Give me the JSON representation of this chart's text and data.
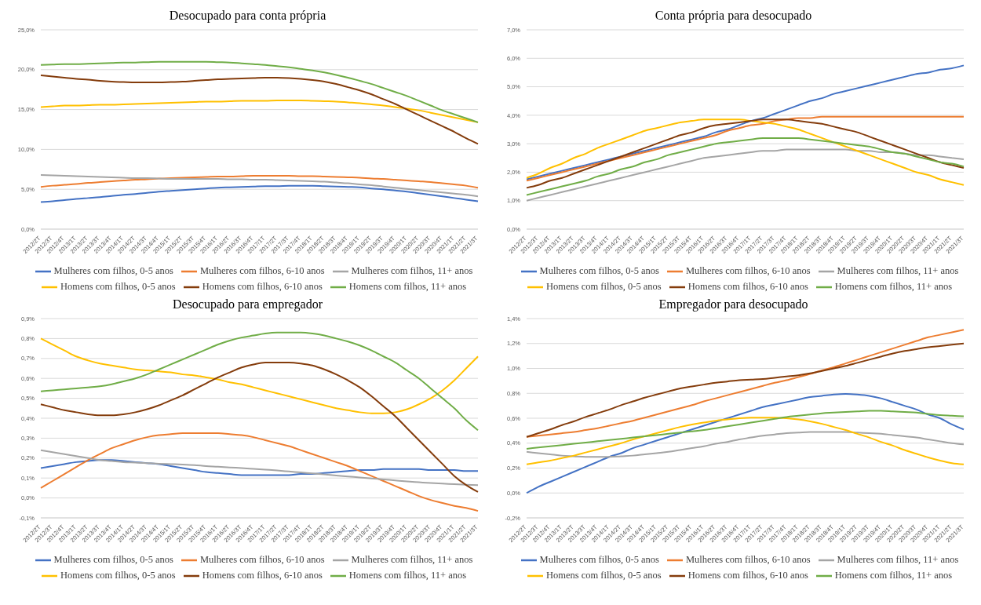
{
  "chart_data": [
    {
      "type": "line",
      "title": "Desocupado para conta própria",
      "categories": [
        "2012/2T",
        "2012/3T",
        "2012/4T",
        "2013/1T",
        "2013/2T",
        "2013/3T",
        "2013/4T",
        "2014/1T",
        "2014/2T",
        "2014/3T",
        "2014/4T",
        "2015/1T",
        "2015/2T",
        "2015/3T",
        "2015/4T",
        "2016/1T",
        "2016/2T",
        "2016/3T",
        "2016/4T",
        "2017/1T",
        "2017/2T",
        "2017/3T",
        "2017/4T",
        "2018/1T",
        "2018/2T",
        "2018/3T",
        "2018/4T",
        "2019/1T",
        "2019/2T",
        "2019/3T",
        "2019/4T",
        "2020/1T",
        "2020/2T",
        "2020/3T",
        "2020/4T",
        "2021/1T",
        "2021/2T",
        "2021/3T"
      ],
      "ylim": [
        0,
        25
      ],
      "yticks": [
        {
          "value": 0,
          "label": "0,0%"
        },
        {
          "value": 5,
          "label": "5,0%"
        },
        {
          "value": 10,
          "label": "10,0%"
        },
        {
          "value": 15,
          "label": "15,0%"
        },
        {
          "value": 20,
          "label": "20,0%"
        },
        {
          "value": 25,
          "label": "25,0%"
        }
      ],
      "grid": "y",
      "legend": "bottom",
      "marker": "none",
      "line_style": "solid",
      "series": [
        {
          "name": "Mulheres com filhos, 0-5 anos",
          "color": "#4472c4",
          "values": [
            3.4,
            3.5,
            3.65,
            3.8,
            3.9,
            4.0,
            4.15,
            4.3,
            4.4,
            4.55,
            4.7,
            4.8,
            4.9,
            5.0,
            5.1,
            5.2,
            5.25,
            5.3,
            5.35,
            5.4,
            5.4,
            5.45,
            5.45,
            5.45,
            5.4,
            5.35,
            5.3,
            5.25,
            5.1,
            5.0,
            4.85,
            4.7,
            4.5,
            4.3,
            4.1,
            3.9,
            3.7,
            3.5
          ]
        },
        {
          "name": "Mulheres com filhos, 6-10 anos",
          "color": "#ed7d31",
          "values": [
            5.3,
            5.45,
            5.55,
            5.65,
            5.8,
            5.9,
            6.0,
            6.1,
            6.2,
            6.25,
            6.35,
            6.4,
            6.45,
            6.5,
            6.55,
            6.6,
            6.6,
            6.65,
            6.7,
            6.7,
            6.7,
            6.7,
            6.65,
            6.65,
            6.6,
            6.55,
            6.5,
            6.45,
            6.35,
            6.3,
            6.2,
            6.1,
            6.0,
            5.9,
            5.75,
            5.6,
            5.45,
            5.2
          ]
        },
        {
          "name": "Mulheres com filhos, 11+ anos",
          "color": "#a5a5a5",
          "values": [
            6.8,
            6.75,
            6.7,
            6.65,
            6.6,
            6.55,
            6.5,
            6.45,
            6.4,
            6.4,
            6.35,
            6.3,
            6.3,
            6.3,
            6.3,
            6.3,
            6.25,
            6.25,
            6.2,
            6.2,
            6.15,
            6.1,
            6.05,
            6.0,
            5.95,
            5.85,
            5.75,
            5.6,
            5.5,
            5.35,
            5.2,
            5.05,
            4.9,
            4.75,
            4.6,
            4.45,
            4.3,
            4.1
          ]
        },
        {
          "name": "Homens com filhos, 0-5 anos",
          "color": "#ffc000",
          "values": [
            15.3,
            15.4,
            15.5,
            15.5,
            15.55,
            15.6,
            15.6,
            15.65,
            15.7,
            15.75,
            15.8,
            15.85,
            15.9,
            15.95,
            16.0,
            16.0,
            16.05,
            16.1,
            16.1,
            16.1,
            16.15,
            16.15,
            16.15,
            16.1,
            16.05,
            16.0,
            15.9,
            15.8,
            15.65,
            15.5,
            15.3,
            15.1,
            14.9,
            14.6,
            14.3,
            14.0,
            13.7,
            13.4
          ]
        },
        {
          "name": "Homens com filhos, 6-10 anos",
          "color": "#843c0c",
          "values": [
            19.3,
            19.15,
            19.0,
            18.85,
            18.75,
            18.6,
            18.5,
            18.45,
            18.4,
            18.4,
            18.4,
            18.45,
            18.5,
            18.6,
            18.7,
            18.8,
            18.85,
            18.9,
            18.95,
            19.0,
            19.0,
            18.95,
            18.85,
            18.7,
            18.5,
            18.2,
            17.8,
            17.4,
            16.9,
            16.3,
            15.7,
            15.0,
            14.3,
            13.6,
            12.9,
            12.2,
            11.4,
            10.7
          ]
        },
        {
          "name": "Homens com filhos, 11+ anos",
          "color": "#70ad47",
          "values": [
            20.6,
            20.65,
            20.7,
            20.7,
            20.75,
            20.8,
            20.85,
            20.9,
            20.9,
            20.95,
            21.0,
            21.0,
            21.0,
            21.0,
            21.0,
            20.95,
            20.9,
            20.8,
            20.7,
            20.6,
            20.45,
            20.3,
            20.1,
            19.9,
            19.65,
            19.35,
            19.0,
            18.6,
            18.2,
            17.7,
            17.2,
            16.7,
            16.1,
            15.5,
            14.9,
            14.4,
            13.9,
            13.4
          ]
        }
      ]
    },
    {
      "type": "line",
      "title": "Conta própria para desocupado",
      "categories": [
        "2012/2T",
        "2012/3T",
        "2012/4T",
        "2013/1T",
        "2013/2T",
        "2013/3T",
        "2013/4T",
        "2014/1T",
        "2014/2T",
        "2014/3T",
        "2014/4T",
        "2015/1T",
        "2015/2T",
        "2015/3T",
        "2015/4T",
        "2016/1T",
        "2016/2T",
        "2016/3T",
        "2016/4T",
        "2017/1T",
        "2017/2T",
        "2017/3T",
        "2017/4T",
        "2018/1T",
        "2018/2T",
        "2018/3T",
        "2018/4T",
        "2019/1T",
        "2019/2T",
        "2019/3T",
        "2019/4T",
        "2020/1T",
        "2020/2T",
        "2020/3T",
        "2020/4T",
        "2021/1T",
        "2021/2T",
        "2021/3T"
      ],
      "ylim": [
        0,
        7
      ],
      "yticks": [
        {
          "value": 0,
          "label": "0,0%"
        },
        {
          "value": 1,
          "label": "1,0%"
        },
        {
          "value": 2,
          "label": "2,0%"
        },
        {
          "value": 3,
          "label": "3,0%"
        },
        {
          "value": 4,
          "label": "4,0%"
        },
        {
          "value": 5,
          "label": "5,0%"
        },
        {
          "value": 6,
          "label": "6,0%"
        },
        {
          "value": 7,
          "label": "7,0%"
        }
      ],
      "grid": "y",
      "legend": "bottom",
      "marker": "none",
      "line_style": "solid",
      "series": [
        {
          "name": "Mulheres com filhos, 0-5 anos",
          "color": "#4472c4",
          "values": [
            1.75,
            1.85,
            1.95,
            2.05,
            2.15,
            2.25,
            2.35,
            2.45,
            2.55,
            2.65,
            2.75,
            2.85,
            2.95,
            3.05,
            3.15,
            3.25,
            3.4,
            3.5,
            3.65,
            3.8,
            3.9,
            4.05,
            4.2,
            4.35,
            4.5,
            4.6,
            4.75,
            4.85,
            4.95,
            5.05,
            5.15,
            5.25,
            5.35,
            5.45,
            5.5,
            5.6,
            5.65,
            5.75
          ]
        },
        {
          "name": "Mulheres com filhos, 6-10 anos",
          "color": "#ed7d31",
          "values": [
            1.7,
            1.8,
            1.9,
            2.0,
            2.1,
            2.2,
            2.3,
            2.4,
            2.5,
            2.6,
            2.7,
            2.8,
            2.9,
            3.0,
            3.1,
            3.2,
            3.3,
            3.45,
            3.55,
            3.65,
            3.7,
            3.8,
            3.85,
            3.9,
            3.9,
            3.95,
            3.95,
            3.95,
            3.95,
            3.95,
            3.95,
            3.95,
            3.95,
            3.95,
            3.95,
            3.95,
            3.95,
            3.95
          ]
        },
        {
          "name": "Mulheres com filhos, 11+ anos",
          "color": "#a5a5a5",
          "values": [
            1.0,
            1.1,
            1.2,
            1.3,
            1.4,
            1.5,
            1.6,
            1.7,
            1.8,
            1.9,
            2.0,
            2.1,
            2.2,
            2.3,
            2.4,
            2.5,
            2.55,
            2.6,
            2.65,
            2.7,
            2.75,
            2.75,
            2.8,
            2.8,
            2.8,
            2.8,
            2.8,
            2.8,
            2.75,
            2.75,
            2.7,
            2.7,
            2.65,
            2.6,
            2.6,
            2.55,
            2.5,
            2.45
          ]
        },
        {
          "name": "Homens com filhos, 0-5 anos",
          "color": "#ffc000",
          "values": [
            1.8,
            1.95,
            2.15,
            2.3,
            2.5,
            2.65,
            2.85,
            3.0,
            3.15,
            3.3,
            3.45,
            3.55,
            3.65,
            3.75,
            3.8,
            3.85,
            3.85,
            3.85,
            3.85,
            3.8,
            3.75,
            3.7,
            3.6,
            3.5,
            3.35,
            3.2,
            3.05,
            2.9,
            2.75,
            2.6,
            2.45,
            2.3,
            2.15,
            2.0,
            1.9,
            1.75,
            1.65,
            1.55
          ]
        },
        {
          "name": "Homens com filhos, 6-10 anos",
          "color": "#843c0c",
          "values": [
            1.45,
            1.55,
            1.7,
            1.8,
            1.95,
            2.1,
            2.25,
            2.4,
            2.55,
            2.7,
            2.85,
            3.0,
            3.15,
            3.3,
            3.4,
            3.55,
            3.65,
            3.7,
            3.75,
            3.8,
            3.85,
            3.85,
            3.85,
            3.8,
            3.75,
            3.7,
            3.6,
            3.5,
            3.4,
            3.25,
            3.1,
            2.95,
            2.8,
            2.65,
            2.5,
            2.35,
            2.25,
            2.15
          ]
        },
        {
          "name": "Homens com filhos, 11+ anos",
          "color": "#70ad47",
          "values": [
            1.2,
            1.3,
            1.4,
            1.5,
            1.6,
            1.7,
            1.85,
            1.95,
            2.1,
            2.2,
            2.35,
            2.45,
            2.6,
            2.7,
            2.8,
            2.9,
            3.0,
            3.05,
            3.1,
            3.15,
            3.2,
            3.2,
            3.2,
            3.2,
            3.15,
            3.1,
            3.05,
            3.0,
            2.95,
            2.9,
            2.8,
            2.7,
            2.65,
            2.55,
            2.45,
            2.35,
            2.3,
            2.2
          ]
        }
      ]
    },
    {
      "type": "line",
      "title": "Desocupado para empregador",
      "categories": [
        "2012/2T",
        "2012/3T",
        "2012/4T",
        "2013/1T",
        "2013/2T",
        "2013/3T",
        "2013/4T",
        "2014/1T",
        "2014/2T",
        "2014/3T",
        "2014/4T",
        "2015/1T",
        "2015/2T",
        "2015/3T",
        "2015/4T",
        "2016/1T",
        "2016/2T",
        "2016/3T",
        "2016/4T",
        "2017/1T",
        "2017/2T",
        "2017/3T",
        "2017/4T",
        "2018/1T",
        "2018/2T",
        "2018/3T",
        "2018/4T",
        "2019/1T",
        "2019/2T",
        "2019/3T",
        "2019/4T",
        "2020/1T",
        "2020/2T",
        "2020/3T",
        "2020/4T",
        "2021/1T",
        "2021/2T",
        "2021/3T"
      ],
      "ylim": [
        -0.1,
        0.9
      ],
      "yticks": [
        {
          "value": -0.1,
          "label": "-0,1%"
        },
        {
          "value": 0,
          "label": "0,0%"
        },
        {
          "value": 0.1,
          "label": "0,1%"
        },
        {
          "value": 0.2,
          "label": "0,2%"
        },
        {
          "value": 0.3,
          "label": "0,3%"
        },
        {
          "value": 0.4,
          "label": "0,4%"
        },
        {
          "value": 0.5,
          "label": "0,5%"
        },
        {
          "value": 0.6,
          "label": "0,6%"
        },
        {
          "value": 0.7,
          "label": "0,7%"
        },
        {
          "value": 0.8,
          "label": "0,8%"
        },
        {
          "value": 0.9,
          "label": "0,9%"
        }
      ],
      "grid": "y",
      "legend": "bottom",
      "marker": "none",
      "line_style": "solid",
      "series": [
        {
          "name": "Mulheres com filhos, 0-5 anos",
          "color": "#4472c4",
          "values": [
            0.15,
            0.16,
            0.17,
            0.18,
            0.185,
            0.19,
            0.19,
            0.185,
            0.18,
            0.175,
            0.17,
            0.16,
            0.15,
            0.14,
            0.13,
            0.125,
            0.12,
            0.115,
            0.115,
            0.115,
            0.115,
            0.115,
            0.12,
            0.12,
            0.125,
            0.13,
            0.135,
            0.14,
            0.14,
            0.145,
            0.145,
            0.145,
            0.145,
            0.14,
            0.14,
            0.14,
            0.135,
            0.135
          ]
        },
        {
          "name": "Mulheres com filhos, 6-10 anos",
          "color": "#ed7d31",
          "values": [
            0.05,
            0.085,
            0.12,
            0.155,
            0.19,
            0.22,
            0.25,
            0.27,
            0.29,
            0.305,
            0.315,
            0.32,
            0.325,
            0.325,
            0.325,
            0.325,
            0.32,
            0.315,
            0.305,
            0.29,
            0.275,
            0.26,
            0.24,
            0.22,
            0.2,
            0.18,
            0.16,
            0.135,
            0.11,
            0.085,
            0.06,
            0.035,
            0.01,
            -0.01,
            -0.025,
            -0.04,
            -0.05,
            -0.065
          ]
        },
        {
          "name": "Mulheres com filhos, 11+ anos",
          "color": "#a5a5a5",
          "values": [
            0.24,
            0.23,
            0.22,
            0.21,
            0.2,
            0.19,
            0.185,
            0.18,
            0.178,
            0.175,
            0.172,
            0.17,
            0.168,
            0.165,
            0.16,
            0.157,
            0.153,
            0.15,
            0.146,
            0.142,
            0.138,
            0.133,
            0.128,
            0.123,
            0.118,
            0.113,
            0.108,
            0.103,
            0.098,
            0.093,
            0.088,
            0.083,
            0.079,
            0.075,
            0.072,
            0.069,
            0.066,
            0.064
          ]
        },
        {
          "name": "Homens com filhos, 0-5 anos",
          "color": "#ffc000",
          "values": [
            0.8,
            0.77,
            0.74,
            0.71,
            0.69,
            0.675,
            0.665,
            0.655,
            0.645,
            0.64,
            0.635,
            0.63,
            0.62,
            0.615,
            0.605,
            0.595,
            0.58,
            0.57,
            0.555,
            0.54,
            0.525,
            0.51,
            0.495,
            0.48,
            0.465,
            0.45,
            0.44,
            0.43,
            0.425,
            0.425,
            0.43,
            0.445,
            0.47,
            0.5,
            0.54,
            0.59,
            0.65,
            0.71
          ]
        },
        {
          "name": "Homens com filhos, 6-10 anos",
          "color": "#843c0c",
          "values": [
            0.47,
            0.455,
            0.44,
            0.43,
            0.42,
            0.415,
            0.415,
            0.42,
            0.43,
            0.445,
            0.465,
            0.49,
            0.515,
            0.545,
            0.575,
            0.605,
            0.63,
            0.655,
            0.67,
            0.68,
            0.68,
            0.68,
            0.675,
            0.665,
            0.645,
            0.62,
            0.59,
            0.555,
            0.51,
            0.46,
            0.41,
            0.35,
            0.29,
            0.23,
            0.17,
            0.11,
            0.065,
            0.03
          ]
        },
        {
          "name": "Homens com filhos, 11+ anos",
          "color": "#70ad47",
          "values": [
            0.535,
            0.54,
            0.545,
            0.55,
            0.555,
            0.56,
            0.57,
            0.585,
            0.6,
            0.62,
            0.645,
            0.67,
            0.695,
            0.72,
            0.745,
            0.77,
            0.79,
            0.805,
            0.815,
            0.825,
            0.83,
            0.83,
            0.83,
            0.825,
            0.815,
            0.8,
            0.785,
            0.765,
            0.74,
            0.71,
            0.68,
            0.64,
            0.6,
            0.55,
            0.5,
            0.45,
            0.39,
            0.34
          ]
        }
      ]
    },
    {
      "type": "line",
      "title": "Empregador para desocupado",
      "categories": [
        "2012/2T",
        "2012/3T",
        "2012/4T",
        "2013/1T",
        "2013/2T",
        "2013/3T",
        "2013/4T",
        "2014/1T",
        "2014/2T",
        "2014/3T",
        "2014/4T",
        "2015/1T",
        "2015/2T",
        "2015/3T",
        "2015/4T",
        "2016/1T",
        "2016/2T",
        "2016/3T",
        "2016/4T",
        "2017/1T",
        "2017/2T",
        "2017/3T",
        "2017/4T",
        "2018/1T",
        "2018/2T",
        "2018/3T",
        "2018/4T",
        "2019/1T",
        "2019/2T",
        "2019/3T",
        "2019/4T",
        "2020/1T",
        "2020/2T",
        "2020/3T",
        "2020/4T",
        "2021/1T",
        "2021/2T",
        "2021/3T"
      ],
      "ylim": [
        -0.2,
        1.4
      ],
      "yticks": [
        {
          "value": -0.2,
          "label": "-0,2%"
        },
        {
          "value": 0,
          "label": "0,0%"
        },
        {
          "value": 0.2,
          "label": "0,2%"
        },
        {
          "value": 0.4,
          "label": "0,4%"
        },
        {
          "value": 0.6,
          "label": "0,6%"
        },
        {
          "value": 0.8,
          "label": "0,8%"
        },
        {
          "value": 1.0,
          "label": "1,0%"
        },
        {
          "value": 1.2,
          "label": "1,2%"
        },
        {
          "value": 1.4,
          "label": "1,4%"
        }
      ],
      "grid": "y",
      "legend": "bottom",
      "marker": "none",
      "line_style": "solid",
      "series": [
        {
          "name": "Mulheres com filhos, 0-5 anos",
          "color": "#4472c4",
          "values": [
            0.0,
            0.05,
            0.09,
            0.13,
            0.17,
            0.21,
            0.25,
            0.29,
            0.32,
            0.36,
            0.39,
            0.42,
            0.45,
            0.48,
            0.51,
            0.54,
            0.57,
            0.6,
            0.63,
            0.66,
            0.69,
            0.71,
            0.73,
            0.75,
            0.77,
            0.78,
            0.79,
            0.795,
            0.79,
            0.78,
            0.76,
            0.73,
            0.7,
            0.67,
            0.63,
            0.6,
            0.55,
            0.51
          ]
        },
        {
          "name": "Mulheres com filhos, 6-10 anos",
          "color": "#ed7d31",
          "values": [
            0.45,
            0.46,
            0.47,
            0.48,
            0.49,
            0.505,
            0.52,
            0.54,
            0.56,
            0.58,
            0.605,
            0.63,
            0.655,
            0.68,
            0.705,
            0.735,
            0.76,
            0.785,
            0.81,
            0.835,
            0.86,
            0.885,
            0.905,
            0.93,
            0.955,
            0.985,
            1.01,
            1.04,
            1.07,
            1.1,
            1.13,
            1.16,
            1.19,
            1.22,
            1.25,
            1.27,
            1.29,
            1.31
          ]
        },
        {
          "name": "Mulheres com filhos, 11+ anos",
          "color": "#a5a5a5",
          "values": [
            0.33,
            0.32,
            0.31,
            0.3,
            0.295,
            0.29,
            0.29,
            0.29,
            0.295,
            0.3,
            0.31,
            0.32,
            0.33,
            0.345,
            0.36,
            0.375,
            0.395,
            0.41,
            0.43,
            0.445,
            0.46,
            0.47,
            0.48,
            0.485,
            0.49,
            0.49,
            0.49,
            0.49,
            0.485,
            0.48,
            0.475,
            0.465,
            0.455,
            0.445,
            0.43,
            0.415,
            0.4,
            0.39
          ]
        },
        {
          "name": "Homens com filhos, 0-5 anos",
          "color": "#ffc000",
          "values": [
            0.23,
            0.245,
            0.26,
            0.28,
            0.3,
            0.325,
            0.35,
            0.375,
            0.4,
            0.43,
            0.455,
            0.48,
            0.505,
            0.53,
            0.55,
            0.565,
            0.58,
            0.59,
            0.6,
            0.605,
            0.605,
            0.605,
            0.6,
            0.59,
            0.575,
            0.555,
            0.53,
            0.505,
            0.475,
            0.445,
            0.41,
            0.38,
            0.345,
            0.315,
            0.285,
            0.26,
            0.24,
            0.23
          ]
        },
        {
          "name": "Homens com filhos, 6-10 anos",
          "color": "#843c0c",
          "values": [
            0.45,
            0.48,
            0.51,
            0.545,
            0.575,
            0.61,
            0.64,
            0.67,
            0.705,
            0.735,
            0.765,
            0.79,
            0.815,
            0.84,
            0.855,
            0.87,
            0.885,
            0.895,
            0.905,
            0.91,
            0.915,
            0.925,
            0.935,
            0.945,
            0.96,
            0.98,
            1.0,
            1.02,
            1.045,
            1.07,
            1.095,
            1.12,
            1.14,
            1.155,
            1.17,
            1.18,
            1.19,
            1.2
          ]
        },
        {
          "name": "Homens com filhos, 11+ anos",
          "color": "#70ad47",
          "values": [
            0.355,
            0.365,
            0.375,
            0.385,
            0.395,
            0.405,
            0.415,
            0.425,
            0.435,
            0.445,
            0.455,
            0.465,
            0.475,
            0.485,
            0.495,
            0.505,
            0.52,
            0.535,
            0.55,
            0.565,
            0.58,
            0.595,
            0.61,
            0.62,
            0.63,
            0.64,
            0.645,
            0.65,
            0.655,
            0.66,
            0.66,
            0.655,
            0.65,
            0.645,
            0.635,
            0.625,
            0.62,
            0.615
          ]
        }
      ]
    }
  ]
}
